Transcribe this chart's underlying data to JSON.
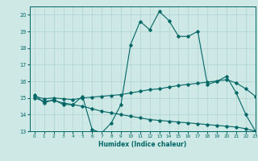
{
  "xlabel": "Humidex (Indice chaleur)",
  "ylabel": "",
  "xlim": [
    -0.5,
    23
  ],
  "ylim": [
    13,
    20.5
  ],
  "yticks": [
    13,
    14,
    15,
    16,
    17,
    18,
    19,
    20
  ],
  "xticks": [
    0,
    1,
    2,
    3,
    4,
    5,
    6,
    7,
    8,
    9,
    10,
    11,
    12,
    13,
    14,
    15,
    16,
    17,
    18,
    19,
    20,
    21,
    22,
    23
  ],
  "bg_color": "#cde8e5",
  "line_color": "#006666",
  "grid_color": "#b0d4d0",
  "series": [
    {
      "x": [
        0,
        1,
        2,
        3,
        4,
        5,
        6,
        7,
        8,
        9,
        10,
        11,
        12,
        13,
        14,
        15,
        16,
        17,
        18,
        19,
        20,
        21,
        22,
        23
      ],
      "y": [
        15.2,
        14.7,
        14.9,
        14.6,
        14.6,
        15.1,
        13.1,
        12.9,
        13.5,
        14.6,
        18.2,
        19.6,
        19.1,
        20.2,
        19.65,
        18.7,
        18.7,
        19.0,
        15.8,
        16.0,
        16.3,
        15.3,
        14.0,
        13.0
      ]
    },
    {
      "x": [
        0,
        1,
        2,
        3,
        4,
        5,
        6,
        7,
        8,
        9,
        10,
        11,
        12,
        13,
        14,
        15,
        16,
        17,
        18,
        19,
        20,
        21,
        22,
        23
      ],
      "y": [
        15.1,
        14.95,
        15.0,
        14.95,
        14.9,
        15.0,
        15.05,
        15.1,
        15.15,
        15.2,
        15.3,
        15.4,
        15.5,
        15.55,
        15.65,
        15.75,
        15.82,
        15.88,
        15.95,
        16.02,
        16.1,
        15.9,
        15.55,
        15.1
      ]
    },
    {
      "x": [
        0,
        1,
        2,
        3,
        4,
        5,
        6,
        7,
        8,
        9,
        10,
        11,
        12,
        13,
        14,
        15,
        16,
        17,
        18,
        19,
        20,
        21,
        22,
        23
      ],
      "y": [
        15.0,
        14.8,
        14.85,
        14.7,
        14.6,
        14.5,
        14.35,
        14.2,
        14.1,
        14.0,
        13.9,
        13.8,
        13.7,
        13.65,
        13.6,
        13.55,
        13.5,
        13.45,
        13.4,
        13.35,
        13.3,
        13.25,
        13.15,
        13.0
      ]
    }
  ]
}
